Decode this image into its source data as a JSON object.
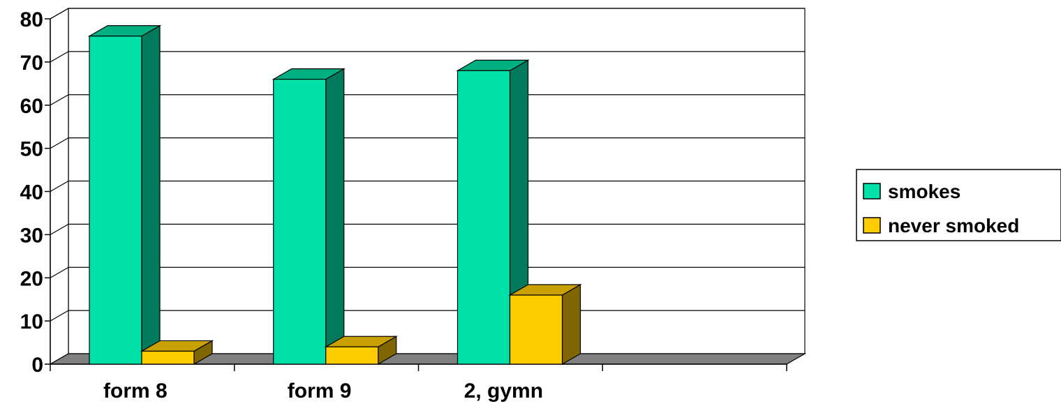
{
  "chart_data": {
    "type": "bar",
    "three_d": true,
    "title": "",
    "xlabel": "",
    "ylabel": "",
    "categories": [
      "form 8",
      "form 9",
      "2, gymn",
      ""
    ],
    "series": [
      {
        "name": "smokes",
        "values": [
          76,
          66,
          68,
          null
        ],
        "color": "#00E0A8",
        "side_color": "#007A5A",
        "top_color": "#00B080"
      },
      {
        "name": "never smoked",
        "values": [
          3,
          4,
          16,
          null
        ],
        "color": "#FFCC00",
        "side_color": "#806600",
        "top_color": "#C8A000"
      }
    ],
    "ylim": [
      0,
      80
    ],
    "yticks": [
      "0",
      "10",
      "20",
      "30",
      "40",
      "50",
      "60",
      "70",
      "80"
    ],
    "grid": true,
    "legend_position": "right",
    "colors": {
      "floor": "#808080",
      "grid": "#000000",
      "background": "#ffffff"
    }
  }
}
